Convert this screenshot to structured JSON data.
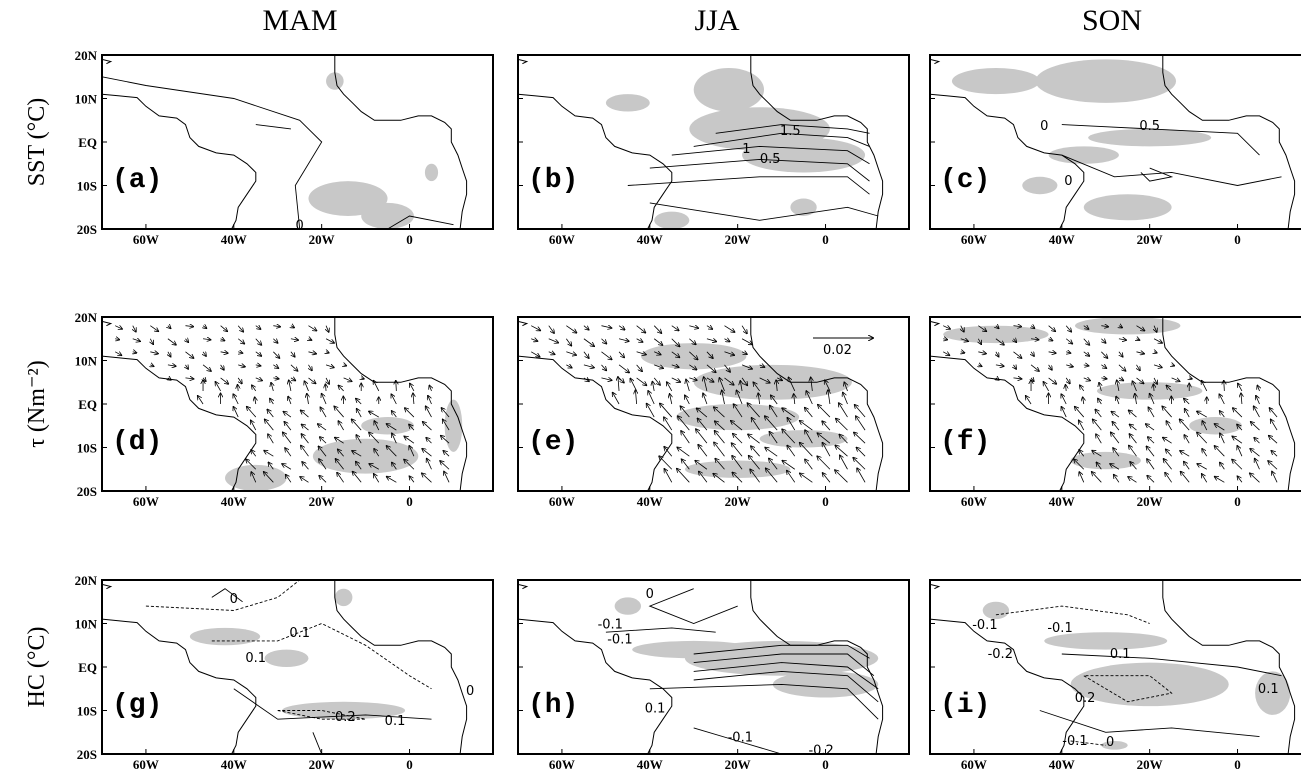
{
  "columns": [
    "MAM",
    "JJA",
    "SON"
  ],
  "rows": [
    "SST (°C)",
    "τ (Nm⁻²)",
    "HC (°C)"
  ],
  "axes": {
    "xlim": [
      -70,
      19
    ],
    "xticks": [
      {
        "value": -60,
        "label": "60W"
      },
      {
        "value": -40,
        "label": "40W"
      },
      {
        "value": -20,
        "label": "20W"
      },
      {
        "value": 0,
        "label": "0"
      }
    ],
    "ylim": [
      -20,
      20
    ],
    "yticks": [
      {
        "value": 20,
        "label": "20N"
      },
      {
        "value": 10,
        "label": "10N"
      },
      {
        "value": 0,
        "label": "EQ"
      },
      {
        "value": -10,
        "label": "10S"
      },
      {
        "value": -20,
        "label": "20S"
      }
    ]
  },
  "panels": [
    {
      "label": "(a)",
      "contour_labels": [
        "0"
      ]
    },
    {
      "label": "(b)",
      "contour_labels": [
        "1.5",
        "1",
        "0.5"
      ]
    },
    {
      "label": "(c)",
      "contour_labels": [
        "0",
        "0.5",
        "0"
      ]
    },
    {
      "label": "(d)",
      "contour_labels": []
    },
    {
      "label": "(e)",
      "contour_labels": [],
      "reference_arrow": "0.02"
    },
    {
      "label": "(f)",
      "contour_labels": []
    },
    {
      "label": "(g)",
      "contour_labels": [
        "0",
        "0.1",
        "0.1",
        "0",
        "0.2",
        "0.1"
      ]
    },
    {
      "label": "(h)",
      "contour_labels": [
        "0",
        "-0.1",
        "-0.1",
        "0.1",
        "-0.1",
        "-0.2"
      ]
    },
    {
      "label": "(i)",
      "contour_labels": [
        "-0.1",
        "-0.1",
        "-0.2",
        "0.1",
        "0.2",
        "0.1",
        "-0.1",
        "0"
      ]
    }
  ]
}
